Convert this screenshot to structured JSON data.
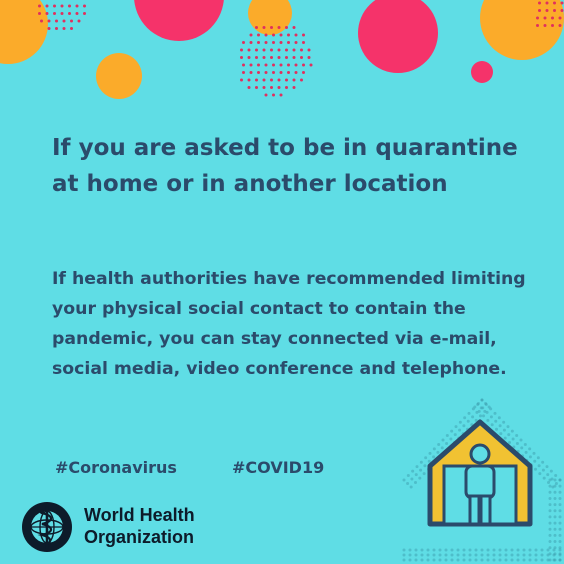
{
  "heading": "If you are asked to be in quarantine at home or in another location",
  "body": "If health authorities have recommended limiting your physical social contact to contain the pandemic, you can stay connected via e-mail, social media, video conference and telephone.",
  "hashtags": [
    "#Coronavirus",
    "#COVID19"
  ],
  "organization": {
    "line1": "World Health",
    "line2": "Organization"
  },
  "colors": {
    "background": "#5fdde5",
    "text": "#2b4b6b",
    "orange": "#fbab2a",
    "pink": "#f5336a",
    "dots": "#e0305e",
    "house": "#f1c232"
  }
}
